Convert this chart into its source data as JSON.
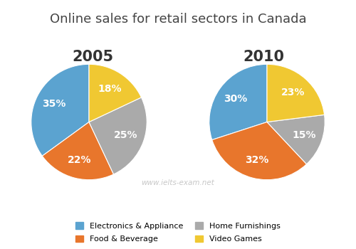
{
  "title": "Online sales for retail sectors in Canada",
  "title_fontsize": 13,
  "year1": "2005",
  "year2": "2010",
  "year_fontsize": 15,
  "labels": [
    "Electronics & Appliance",
    "Food & Beverage",
    "Home Furnishings",
    "Video Games"
  ],
  "values_2005": [
    35,
    22,
    25,
    18
  ],
  "values_2010": [
    30,
    32,
    15,
    23
  ],
  "colors": [
    "#5BA3D0",
    "#E8762C",
    "#AAAAAA",
    "#F0C832"
  ],
  "pct_fontsize": 10,
  "legend_labels": [
    "Electronics & Appliance",
    "Food & Beverage",
    "Home Furnishings",
    "Video Games"
  ],
  "watermark": "www.ielts-exam.net",
  "watermark_color": "#C8C8C8",
  "startangle_2005": 90,
  "startangle_2010": 90
}
